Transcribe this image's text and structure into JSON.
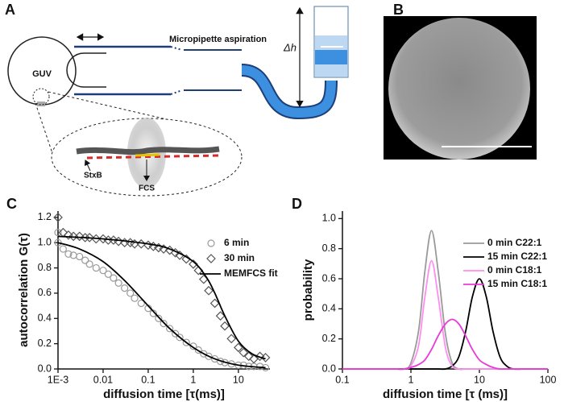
{
  "panel_a": {
    "label": "A",
    "guv": "GUV",
    "micropipette": "Micropipette aspiration",
    "height_diff": "Δh",
    "stxb": "StxB",
    "fcs": "FCS"
  },
  "panel_b": {
    "label": "B"
  },
  "chart_data": [
    {
      "type": "scatter",
      "panel_label": "C",
      "xlabel": "diffusion time [τ(ms)]",
      "ylabel": "autocorrelation G(τ)",
      "xscale": "log",
      "xlim": [
        0.001,
        50
      ],
      "xticks": [
        {
          "value": 0.001,
          "label": "1E-3"
        },
        0.01,
        0.1,
        1,
        10
      ],
      "ylim": [
        0,
        1.25
      ],
      "yticks": [
        {
          "value": 0,
          "label": "0.0"
        },
        0.2,
        0.4,
        0.6,
        0.8,
        {
          "value": 1,
          "label": "1.0"
        },
        1.2
      ],
      "legend": "upper right",
      "series": [
        {
          "name": "6 min",
          "color": "#9a9a9a",
          "marker": "circle",
          "x": [
            0.001,
            0.001,
            0.0013,
            0.0017,
            0.0022,
            0.003,
            0.004,
            0.005,
            0.007,
            0.01,
            0.013,
            0.017,
            0.022,
            0.03,
            0.04,
            0.05,
            0.07,
            0.1,
            0.13,
            0.17,
            0.22,
            0.3,
            0.4,
            0.5,
            0.7,
            1,
            1.3,
            1.7,
            2.2,
            3,
            4,
            5,
            7,
            10,
            13,
            17,
            22,
            30,
            40
          ],
          "values": [
            1.08,
            1.0,
            0.95,
            0.91,
            0.9,
            0.89,
            0.86,
            0.83,
            0.8,
            0.78,
            0.75,
            0.72,
            0.68,
            0.64,
            0.6,
            0.56,
            0.52,
            0.48,
            0.44,
            0.4,
            0.36,
            0.32,
            0.28,
            0.25,
            0.21,
            0.18,
            0.15,
            0.12,
            0.1,
            0.08,
            0.06,
            0.05,
            0.04,
            0.03,
            0.03,
            0.02,
            0.02,
            0.02,
            0.01
          ]
        },
        {
          "name": "30 min",
          "color": "#555555",
          "marker": "diamond",
          "x": [
            0.001,
            0.0013,
            0.0017,
            0.0022,
            0.003,
            0.004,
            0.005,
            0.007,
            0.01,
            0.013,
            0.017,
            0.022,
            0.03,
            0.04,
            0.05,
            0.07,
            0.1,
            0.13,
            0.17,
            0.22,
            0.3,
            0.4,
            0.5,
            0.7,
            1,
            1.3,
            1.7,
            2.2,
            3,
            4,
            5,
            7,
            10,
            13,
            17,
            22,
            30,
            40
          ],
          "values": [
            1.2,
            1.08,
            1.06,
            1.05,
            1.05,
            1.04,
            1.04,
            1.03,
            1.03,
            1.02,
            1.02,
            1.01,
            1.0,
            1.0,
            0.99,
            0.99,
            0.98,
            0.97,
            0.96,
            0.95,
            0.94,
            0.92,
            0.9,
            0.87,
            0.83,
            0.78,
            0.71,
            0.62,
            0.52,
            0.42,
            0.34,
            0.24,
            0.17,
            0.13,
            0.1,
            0.08,
            0.1,
            0.09
          ]
        },
        {
          "name": "MEMFCS fit",
          "color": "#000000",
          "marker": "none",
          "x": [
            0.001,
            0.003,
            0.01,
            0.03,
            0.1,
            0.3,
            1,
            3,
            10,
            40
          ],
          "values": [
            1.0,
            0.95,
            0.85,
            0.7,
            0.5,
            0.32,
            0.17,
            0.08,
            0.03,
            0.01
          ]
        },
        {
          "color": "#000000",
          "marker": "none",
          "x": [
            0.001,
            0.01,
            0.1,
            0.3,
            1,
            2,
            3,
            5,
            10,
            20,
            40
          ],
          "values": [
            1.05,
            1.03,
            0.99,
            0.95,
            0.85,
            0.72,
            0.6,
            0.42,
            0.22,
            0.12,
            0.08
          ]
        }
      ]
    },
    {
      "type": "line",
      "panel_label": "D",
      "xlabel": "diffusion time [τ (ms)]",
      "ylabel": "probability",
      "xscale": "log",
      "xlim": [
        0.1,
        100
      ],
      "xticks": [
        0.1,
        1,
        10,
        100
      ],
      "ylim": [
        0,
        1.05
      ],
      "yticks": [
        {
          "value": 0,
          "label": "0.0"
        },
        0.2,
        0.4,
        0.6,
        0.8,
        {
          "value": 1,
          "label": "1.0"
        }
      ],
      "legend": "upper right",
      "x": [
        0.1,
        0.3,
        0.5,
        0.6,
        0.8,
        1,
        1.3,
        1.6,
        2,
        2.5,
        3.2,
        4,
        5,
        6.3,
        7.9,
        10,
        12.6,
        15.8,
        20,
        25,
        31.6,
        50,
        100
      ],
      "series": [
        {
          "name": "0 min C22:1",
          "color": "#9a9a9a",
          "values": [
            0,
            0,
            0,
            0,
            0,
            0.04,
            0.26,
            0.65,
            0.92,
            0.65,
            0.23,
            0.04,
            0,
            0,
            0,
            0,
            0,
            0,
            0,
            0,
            0,
            0,
            0
          ]
        },
        {
          "name": "15 min C22:1",
          "color": "#000000",
          "values": [
            0,
            0,
            0,
            0,
            0,
            0,
            0,
            0,
            0,
            0,
            0,
            0.02,
            0.08,
            0.25,
            0.48,
            0.6,
            0.48,
            0.25,
            0.08,
            0.02,
            0,
            0,
            0
          ]
        },
        {
          "name": "0 min C18:1",
          "color": "#ff8cef",
          "values": [
            0,
            0,
            0,
            0,
            0,
            0.02,
            0.16,
            0.48,
            0.72,
            0.48,
            0.14,
            0.02,
            0,
            0,
            0,
            0,
            0,
            0,
            0,
            0,
            0,
            0,
            0
          ]
        },
        {
          "name": "15 min C18:1",
          "color": "#e83ad8",
          "values": [
            0,
            0,
            0,
            0,
            0,
            0.01,
            0.03,
            0.06,
            0.13,
            0.22,
            0.3,
            0.33,
            0.3,
            0.22,
            0.13,
            0.06,
            0.03,
            0.01,
            0,
            0,
            0,
            0,
            0
          ]
        }
      ]
    }
  ]
}
